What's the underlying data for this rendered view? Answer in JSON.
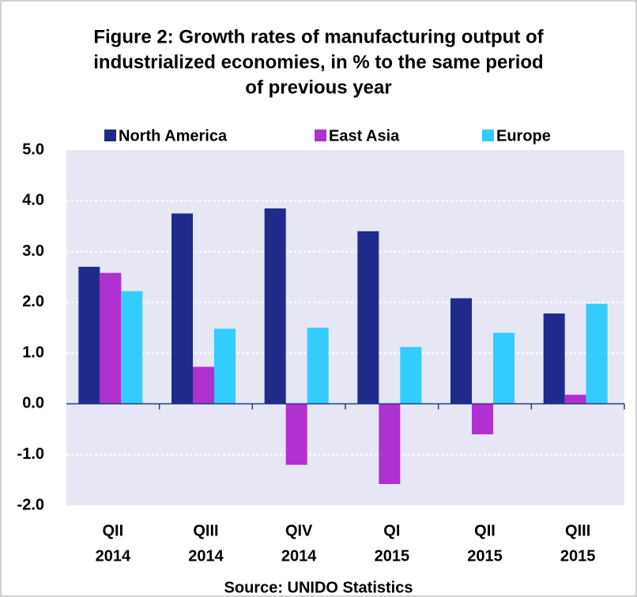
{
  "chart_data": {
    "type": "bar",
    "title": [
      "Figure 2: Growth rates of manufacturing output of",
      "industrialized economies, in % to the same period",
      "of previous year"
    ],
    "categories": [
      [
        "QII",
        "2014"
      ],
      [
        "QIII",
        "2014"
      ],
      [
        "QIV",
        "2014"
      ],
      [
        "QI",
        "2015"
      ],
      [
        "QII",
        "2015"
      ],
      [
        "QIII",
        "2015"
      ]
    ],
    "series": [
      {
        "name": "North America",
        "color": "#1f2a8a",
        "values": [
          2.7,
          3.75,
          3.85,
          3.4,
          2.08,
          1.78
        ]
      },
      {
        "name": "East Asia",
        "color": "#b030d0",
        "values": [
          2.58,
          0.73,
          -1.2,
          -1.58,
          -0.6,
          0.18
        ]
      },
      {
        "name": "Europe",
        "color": "#33ccff",
        "values": [
          2.22,
          1.48,
          1.5,
          1.12,
          1.4,
          1.97
        ]
      }
    ],
    "ylim": [
      -2,
      5
    ],
    "yticks": [
      {
        "value": -2,
        "label": "-2.0"
      },
      {
        "value": -1,
        "label": "-1.0"
      },
      {
        "value": 0,
        "label": "0.0"
      },
      {
        "value": 1,
        "label": "1.0"
      },
      {
        "value": 2,
        "label": "2.0"
      },
      {
        "value": 3,
        "label": "3.0"
      },
      {
        "value": 4,
        "label": "4.0"
      },
      {
        "value": 5,
        "label": "5.0"
      }
    ],
    "grid": true,
    "legend": "top",
    "source": "Source: UNIDO Statistics"
  }
}
